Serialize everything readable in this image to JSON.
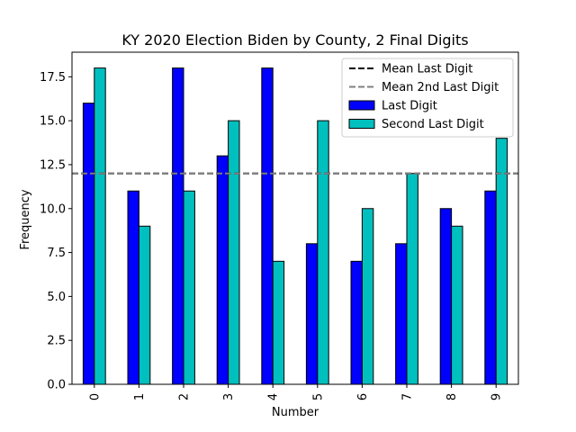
{
  "chart_data": {
    "type": "bar",
    "title": "KY 2020 Election Biden by County, 2 Final Digits",
    "xlabel": "Number",
    "ylabel": "Frequency",
    "categories": [
      "0",
      "1",
      "2",
      "3",
      "4",
      "5",
      "6",
      "7",
      "8",
      "9"
    ],
    "series": [
      {
        "name": "Last Digit",
        "color": "#0000ff",
        "values": [
          16,
          11,
          18,
          13,
          18,
          8,
          7,
          8,
          10,
          11
        ]
      },
      {
        "name": "Second Last Digit",
        "color": "#00bfbf",
        "values": [
          18,
          9,
          11,
          15,
          7,
          15,
          10,
          12,
          9,
          14
        ]
      }
    ],
    "reference_lines": [
      {
        "name": "Mean Last Digit",
        "value": 12,
        "color": "#000000",
        "style": "dashed"
      },
      {
        "name": "Mean 2nd Last Digit",
        "value": 12,
        "color": "#808080",
        "style": "dashed"
      }
    ],
    "yticks": [
      "0.0",
      "2.5",
      "5.0",
      "7.5",
      "10.0",
      "12.5",
      "15.0",
      "17.5"
    ],
    "ytick_values": [
      0,
      2.5,
      5,
      7.5,
      10,
      12.5,
      15,
      17.5
    ],
    "ylim": [
      0,
      18.9
    ],
    "grid": false,
    "legend_position": "top-right"
  }
}
